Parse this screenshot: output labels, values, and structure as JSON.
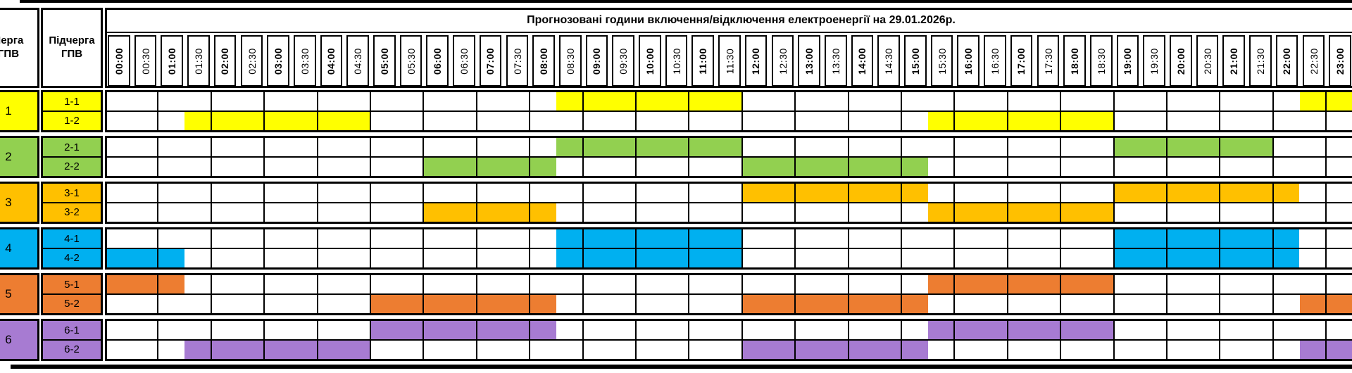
{
  "title": "Прогнозовані години включення/відключення електроенергії на 29.01.2026р.",
  "columns": {
    "queue": "Черга\nГПВ",
    "subqueue": "Підчерга\nГПВ"
  },
  "chart_data": {
    "type": "heatmap",
    "title": "Прогнозовані години включення/відключення електроенергії на 29.01.2026р.",
    "slot_minutes": 30,
    "x_categories": [
      "00:00",
      "00:30",
      "01:00",
      "01:30",
      "02:00",
      "02:30",
      "03:00",
      "03:30",
      "04:00",
      "04:30",
      "05:00",
      "05:30",
      "06:00",
      "06:30",
      "07:00",
      "07:30",
      "08:00",
      "08:30",
      "09:00",
      "09:30",
      "10:00",
      "10:30",
      "11:00",
      "11:30",
      "12:00",
      "12:30",
      "13:00",
      "13:30",
      "14:00",
      "14:30",
      "15:00",
      "15:30",
      "16:00",
      "16:30",
      "17:00",
      "17:30",
      "18:00",
      "18:30",
      "19:00",
      "19:30",
      "20:00",
      "20:30",
      "21:00",
      "21:30",
      "22:00",
      "22:30",
      "23:00"
    ],
    "queues": [
      {
        "number": "1",
        "color": "#FFFF00",
        "subqueues": [
          {
            "label": "1-1",
            "intervals": [
              [
                "08:30",
                "12:00"
              ],
              [
                "22:30",
                "24:00"
              ]
            ]
          },
          {
            "label": "1-2",
            "intervals": [
              [
                "01:30",
                "05:00"
              ],
              [
                "15:30",
                "19:00"
              ]
            ]
          }
        ]
      },
      {
        "number": "2",
        "color": "#92D050",
        "subqueues": [
          {
            "label": "2-1",
            "intervals": [
              [
                "08:30",
                "12:00"
              ],
              [
                "19:00",
                "22:00"
              ]
            ]
          },
          {
            "label": "2-2",
            "intervals": [
              [
                "06:00",
                "08:30"
              ],
              [
                "12:00",
                "15:30"
              ]
            ]
          }
        ]
      },
      {
        "number": "3",
        "color": "#FFC000",
        "subqueues": [
          {
            "label": "3-1",
            "intervals": [
              [
                "12:00",
                "15:30"
              ],
              [
                "19:00",
                "22:30"
              ]
            ]
          },
          {
            "label": "3-2",
            "intervals": [
              [
                "06:00",
                "08:30"
              ],
              [
                "15:30",
                "19:00"
              ]
            ]
          }
        ]
      },
      {
        "number": "4",
        "color": "#00B0F0",
        "subqueues": [
          {
            "label": "4-1",
            "intervals": [
              [
                "08:30",
                "12:00"
              ],
              [
                "19:00",
                "22:30"
              ]
            ]
          },
          {
            "label": "4-2",
            "intervals": [
              [
                "00:00",
                "01:30"
              ],
              [
                "08:30",
                "12:00"
              ],
              [
                "19:00",
                "22:30"
              ]
            ]
          }
        ]
      },
      {
        "number": "5",
        "color": "#ED7D31",
        "subqueues": [
          {
            "label": "5-1",
            "intervals": [
              [
                "00:00",
                "01:30"
              ],
              [
                "15:30",
                "19:00"
              ]
            ]
          },
          {
            "label": "5-2",
            "intervals": [
              [
                "05:00",
                "08:30"
              ],
              [
                "12:00",
                "15:30"
              ],
              [
                "22:30",
                "24:00"
              ]
            ]
          }
        ]
      },
      {
        "number": "6",
        "color": "#A77BD2",
        "subqueues": [
          {
            "label": "6-1",
            "intervals": [
              [
                "05:00",
                "08:30"
              ],
              [
                "15:30",
                "19:00"
              ]
            ]
          },
          {
            "label": "6-2",
            "intervals": [
              [
                "01:30",
                "05:00"
              ],
              [
                "12:00",
                "15:30"
              ],
              [
                "22:30",
                "24:00"
              ]
            ]
          }
        ]
      }
    ]
  }
}
